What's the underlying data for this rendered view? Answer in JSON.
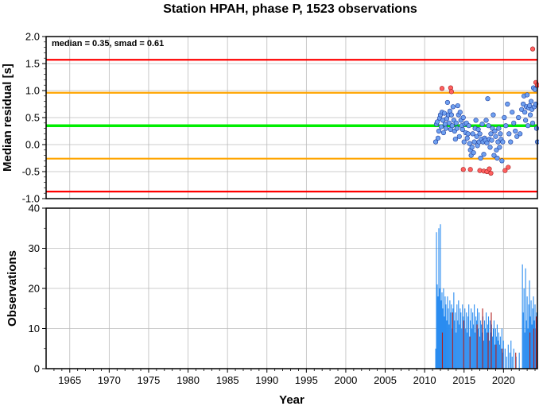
{
  "title": "Station HPAH, phase P, 1523 observations",
  "colors": {
    "red_line": "#ff0000",
    "orange_line": "#ffa500",
    "green_line": "#00ee00",
    "point_normal": "#6fa0f0",
    "point_outlier": "#ff6060",
    "bar_normal": "#2a8cf0",
    "bar_outlier": "#b02020",
    "grid": "#bbbbbb"
  },
  "chart_data": [
    {
      "type": "scatter",
      "ylabel": "Median residual [s]",
      "annotation": "median = 0.35, smad = 0.61",
      "xlim": [
        1962,
        2024.3
      ],
      "ylim": [
        -1.0,
        2.0
      ],
      "yticks": [
        "-1.0",
        "-0.5",
        "0.0",
        "0.5",
        "1.0",
        "1.5",
        "2.0"
      ],
      "ytick_values": [
        -1.0,
        -0.5,
        0.0,
        0.5,
        1.0,
        1.5,
        2.0
      ],
      "grid": true,
      "hlines": [
        {
          "y": 1.57,
          "color": "red"
        },
        {
          "y": 0.96,
          "color": "orange"
        },
        {
          "y": 0.35,
          "color": "green"
        },
        {
          "y": -0.26,
          "color": "orange"
        },
        {
          "y": -0.87,
          "color": "red"
        }
      ],
      "points": {
        "normal": [
          [
            2011.4,
            0.05
          ],
          [
            2011.5,
            0.38
          ],
          [
            2011.6,
            0.42
          ],
          [
            2011.7,
            0.12
          ],
          [
            2011.8,
            0.25
          ],
          [
            2011.9,
            0.49
          ],
          [
            2012.0,
            0.55
          ],
          [
            2012.1,
            0.33
          ],
          [
            2012.2,
            0.6
          ],
          [
            2012.3,
            0.45
          ],
          [
            2012.4,
            0.22
          ],
          [
            2012.5,
            0.58
          ],
          [
            2012.6,
            0.38
          ],
          [
            2012.7,
            0.3
          ],
          [
            2012.8,
            0.48
          ],
          [
            2012.9,
            0.78
          ],
          [
            2013.0,
            0.55
          ],
          [
            2013.1,
            0.4
          ],
          [
            2013.2,
            0.62
          ],
          [
            2013.3,
            0.28
          ],
          [
            2013.4,
            0.55
          ],
          [
            2013.5,
            0.35
          ],
          [
            2013.6,
            0.7
          ],
          [
            2013.7,
            0.45
          ],
          [
            2013.8,
            0.25
          ],
          [
            2013.9,
            0.1
          ],
          [
            2014.0,
            0.4
          ],
          [
            2014.1,
            0.3
          ],
          [
            2014.2,
            0.72
          ],
          [
            2014.3,
            0.55
          ],
          [
            2014.4,
            0.15
          ],
          [
            2014.5,
            0.6
          ],
          [
            2014.6,
            0.45
          ],
          [
            2014.7,
            0.35
          ],
          [
            2014.8,
            0.28
          ],
          [
            2014.9,
            0.5
          ],
          [
            2015.0,
            0.05
          ],
          [
            2015.1,
            0.38
          ],
          [
            2015.2,
            0.22
          ],
          [
            2015.3,
            0.4
          ],
          [
            2015.4,
            0.12
          ],
          [
            2015.5,
            0.2
          ],
          [
            2015.6,
            0.35
          ],
          [
            2015.7,
            0.02
          ],
          [
            2015.8,
            -0.1
          ],
          [
            2015.9,
            -0.2
          ],
          [
            2016.0,
            -0.05
          ],
          [
            2016.1,
            0.2
          ],
          [
            2016.2,
            -0.15
          ],
          [
            2016.3,
            0.05
          ],
          [
            2016.4,
            0.3
          ],
          [
            2016.5,
            0.45
          ],
          [
            2016.6,
            0.15
          ],
          [
            2016.7,
            -0.02
          ],
          [
            2016.8,
            0.28
          ],
          [
            2016.9,
            0.05
          ],
          [
            2017.0,
            0.2
          ],
          [
            2017.1,
            -0.25
          ],
          [
            2017.2,
            0.1
          ],
          [
            2017.3,
            0.38
          ],
          [
            2017.4,
            0.05
          ],
          [
            2017.5,
            -0.18
          ],
          [
            2017.6,
            0.12
          ],
          [
            2017.7,
            0.08
          ],
          [
            2017.8,
            0.45
          ],
          [
            2017.9,
            0.03
          ],
          [
            2018.0,
            0.85
          ],
          [
            2018.1,
            0.35
          ],
          [
            2018.2,
            0.1
          ],
          [
            2018.3,
            -0.05
          ],
          [
            2018.4,
            0.2
          ],
          [
            2018.5,
            0.08
          ],
          [
            2018.6,
            0.3
          ],
          [
            2018.7,
            0.55
          ],
          [
            2018.8,
            -0.2
          ],
          [
            2018.9,
            0.25
          ],
          [
            2019.0,
            0.15
          ],
          [
            2019.1,
            -0.1
          ],
          [
            2019.2,
            -0.25
          ],
          [
            2019.3,
            0.05
          ],
          [
            2019.4,
            0.3
          ],
          [
            2019.5,
            -0.05
          ],
          [
            2019.6,
            0.2
          ],
          [
            2019.7,
            0.1
          ],
          [
            2019.8,
            -0.3
          ],
          [
            2019.9,
            0.05
          ],
          [
            2020.1,
            0.5
          ],
          [
            2020.3,
            0.35
          ],
          [
            2020.5,
            0.75
          ],
          [
            2020.7,
            0.2
          ],
          [
            2020.9,
            0.05
          ],
          [
            2021.1,
            0.6
          ],
          [
            2021.3,
            0.4
          ],
          [
            2021.5,
            0.25
          ],
          [
            2021.7,
            0.15
          ],
          [
            2021.9,
            0.5
          ],
          [
            2022.1,
            0.2
          ],
          [
            2022.3,
            0.65
          ],
          [
            2022.5,
            0.75
          ],
          [
            2022.6,
            0.9
          ],
          [
            2022.7,
            0.6
          ],
          [
            2022.8,
            0.45
          ],
          [
            2022.9,
            0.7
          ],
          [
            2023.0,
            0.92
          ],
          [
            2023.1,
            0.35
          ],
          [
            2023.2,
            0.68
          ],
          [
            2023.3,
            0.72
          ],
          [
            2023.4,
            0.55
          ],
          [
            2023.5,
            0.8
          ],
          [
            2023.6,
            0.65
          ],
          [
            2023.7,
            0.4
          ],
          [
            2023.8,
            1.05
          ],
          [
            2023.9,
            0.7
          ],
          [
            2024.0,
            1.02
          ],
          [
            2024.1,
            0.75
          ],
          [
            2024.2,
            0.3
          ],
          [
            2024.3,
            0.05
          ]
        ],
        "outlier": [
          [
            2012.2,
            1.04
          ],
          [
            2013.3,
            1.05
          ],
          [
            2013.4,
            0.98
          ],
          [
            2014.9,
            -0.46
          ],
          [
            2015.8,
            -0.46
          ],
          [
            2017.0,
            -0.48
          ],
          [
            2017.5,
            -0.49
          ],
          [
            2017.9,
            -0.5
          ],
          [
            2018.2,
            -0.45
          ],
          [
            2018.4,
            -0.53
          ],
          [
            2020.2,
            -0.48
          ],
          [
            2020.6,
            -0.42
          ],
          [
            2023.7,
            1.77
          ],
          [
            2024.1,
            1.15
          ],
          [
            2024.3,
            1.1
          ]
        ]
      }
    },
    {
      "type": "bar",
      "ylabel": "Observations",
      "xlabel": "Year",
      "xlim": [
        1962,
        2024.3
      ],
      "ylim": [
        0,
        40
      ],
      "yticks": [
        "0",
        "10",
        "20",
        "30",
        "40"
      ],
      "ytick_values": [
        0,
        10,
        20,
        30,
        40
      ],
      "xticks": [
        "1965",
        "1970",
        "1975",
        "1980",
        "1985",
        "1990",
        "1995",
        "2000",
        "2005",
        "2010",
        "2015",
        "2020"
      ],
      "xtick_values": [
        1965,
        1970,
        1975,
        1980,
        1985,
        1990,
        1995,
        2000,
        2005,
        2010,
        2015,
        2020
      ],
      "grid": true,
      "bars": [
        [
          2011.4,
          5
        ],
        [
          2011.5,
          34
        ],
        [
          2011.6,
          21
        ],
        [
          2011.7,
          18
        ],
        [
          2011.8,
          35
        ],
        [
          2011.9,
          20
        ],
        [
          2012.0,
          36
        ],
        [
          2012.1,
          17
        ],
        [
          2012.2,
          19
        ],
        [
          2012.3,
          15
        ],
        [
          2012.4,
          20
        ],
        [
          2012.5,
          13
        ],
        [
          2012.6,
          18
        ],
        [
          2012.7,
          16
        ],
        [
          2012.8,
          12
        ],
        [
          2012.9,
          18
        ],
        [
          2013.0,
          15
        ],
        [
          2013.1,
          11
        ],
        [
          2013.2,
          17
        ],
        [
          2013.3,
          14
        ],
        [
          2013.4,
          16
        ],
        [
          2013.5,
          10
        ],
        [
          2013.6,
          15
        ],
        [
          2013.7,
          19
        ],
        [
          2013.8,
          12
        ],
        [
          2013.9,
          14
        ],
        [
          2014.0,
          9
        ],
        [
          2014.1,
          16
        ],
        [
          2014.2,
          12
        ],
        [
          2014.3,
          17
        ],
        [
          2014.4,
          11
        ],
        [
          2014.5,
          15
        ],
        [
          2014.6,
          14
        ],
        [
          2014.7,
          10
        ],
        [
          2014.8,
          16
        ],
        [
          2014.9,
          13
        ],
        [
          2015.0,
          12
        ],
        [
          2015.1,
          15
        ],
        [
          2015.2,
          10
        ],
        [
          2015.3,
          14
        ],
        [
          2015.4,
          9
        ],
        [
          2015.5,
          13
        ],
        [
          2015.6,
          16
        ],
        [
          2015.7,
          8
        ],
        [
          2015.8,
          12
        ],
        [
          2015.9,
          15
        ],
        [
          2016.0,
          10
        ],
        [
          2016.1,
          14
        ],
        [
          2016.2,
          11
        ],
        [
          2016.3,
          16
        ],
        [
          2016.4,
          9
        ],
        [
          2016.5,
          13
        ],
        [
          2016.6,
          12
        ],
        [
          2016.7,
          15
        ],
        [
          2016.8,
          10
        ],
        [
          2016.9,
          14
        ],
        [
          2017.0,
          8
        ],
        [
          2017.1,
          12
        ],
        [
          2017.2,
          11
        ],
        [
          2017.3,
          9
        ],
        [
          2017.4,
          13
        ],
        [
          2017.5,
          7
        ],
        [
          2017.6,
          12
        ],
        [
          2017.7,
          10
        ],
        [
          2017.8,
          14
        ],
        [
          2017.9,
          9
        ],
        [
          2018.0,
          11
        ],
        [
          2018.1,
          13
        ],
        [
          2018.2,
          7
        ],
        [
          2018.3,
          12
        ],
        [
          2018.4,
          9
        ],
        [
          2018.5,
          11
        ],
        [
          2018.6,
          8
        ],
        [
          2018.7,
          10
        ],
        [
          2018.8,
          12
        ],
        [
          2018.9,
          6
        ],
        [
          2019.0,
          10
        ],
        [
          2019.1,
          8
        ],
        [
          2019.2,
          11
        ],
        [
          2019.3,
          7
        ],
        [
          2019.4,
          9
        ],
        [
          2019.5,
          6
        ],
        [
          2019.6,
          8
        ],
        [
          2019.7,
          5
        ],
        [
          2019.8,
          10
        ],
        [
          2019.9,
          4
        ],
        [
          2020.0,
          7
        ],
        [
          2020.2,
          5
        ],
        [
          2020.4,
          3
        ],
        [
          2020.6,
          6
        ],
        [
          2020.8,
          4
        ],
        [
          2020.95,
          7
        ],
        [
          2021.1,
          3
        ],
        [
          2021.3,
          5
        ],
        [
          2021.6,
          3
        ],
        [
          2022.0,
          4
        ],
        [
          2022.4,
          26
        ],
        [
          2022.5,
          14
        ],
        [
          2022.6,
          20
        ],
        [
          2022.7,
          9
        ],
        [
          2022.8,
          25
        ],
        [
          2022.9,
          12
        ],
        [
          2023.0,
          18
        ],
        [
          2023.1,
          10
        ],
        [
          2023.2,
          16
        ],
        [
          2023.3,
          22
        ],
        [
          2023.4,
          13
        ],
        [
          2023.5,
          17
        ],
        [
          2023.6,
          11
        ],
        [
          2023.7,
          15
        ],
        [
          2023.8,
          18
        ],
        [
          2023.9,
          12
        ],
        [
          2024.0,
          16
        ],
        [
          2024.1,
          10
        ],
        [
          2024.2,
          14
        ],
        [
          2024.3,
          11
        ]
      ],
      "outlier_bars": [
        [
          2012.2,
          9
        ],
        [
          2013.5,
          14
        ],
        [
          2014.9,
          12
        ],
        [
          2015.7,
          8
        ],
        [
          2016.6,
          11
        ],
        [
          2017.3,
          15
        ],
        [
          2018.0,
          9
        ],
        [
          2018.4,
          14
        ],
        [
          2019.0,
          6
        ],
        [
          2019.8,
          5
        ],
        [
          2021.5,
          4
        ],
        [
          2023.3,
          9
        ],
        [
          2023.8,
          10
        ],
        [
          2024.1,
          13
        ]
      ]
    }
  ]
}
